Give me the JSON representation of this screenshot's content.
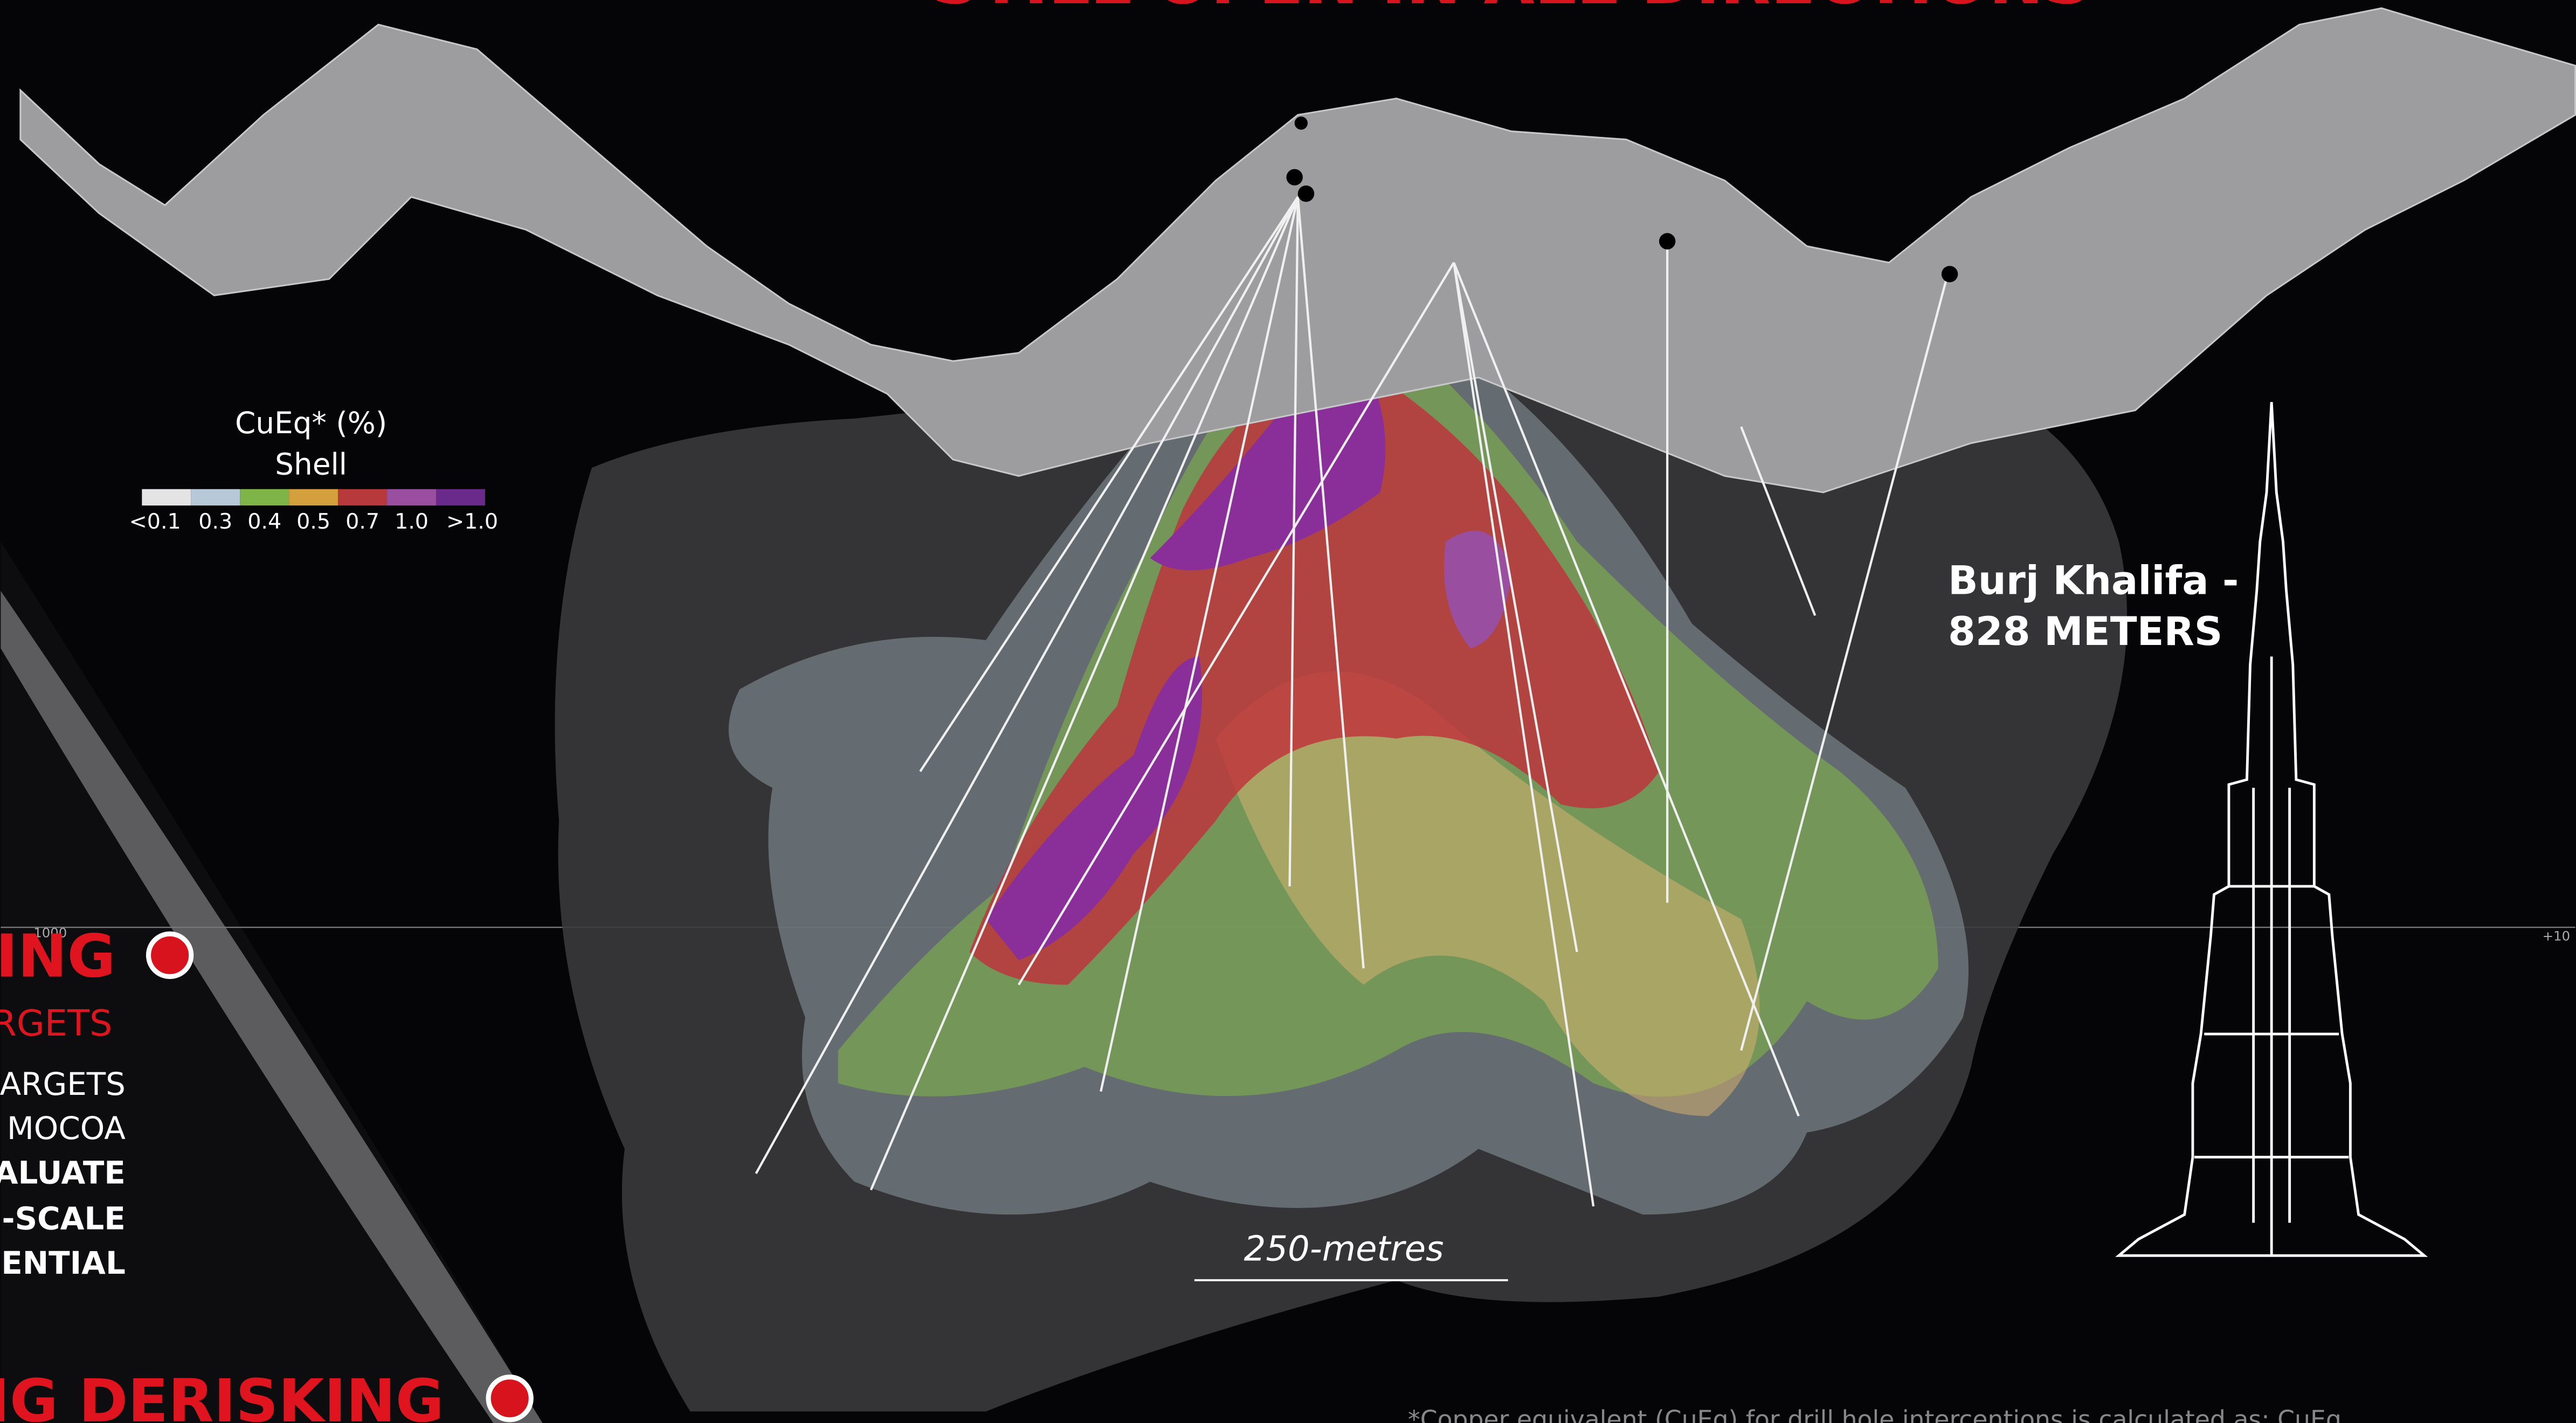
{
  "header": {
    "title": "STILL OPEN IN ALL DIRECTIONS"
  },
  "legend": {
    "title": "CuEq* (%)",
    "subtitle": "Shell",
    "items": [
      {
        "label": "<0.1",
        "color": "#e4e4e4"
      },
      {
        "label": "0.3",
        "color": "#b7c8d6"
      },
      {
        "label": "0.4",
        "color": "#7fb449"
      },
      {
        "label": "0.5",
        "color": "#d4a03e"
      },
      {
        "label": "0.7",
        "color": "#b8393b"
      },
      {
        "label": "1.0",
        "color": "#9a4ea0"
      },
      {
        "label": ">1.0",
        "color": "#6a2a8b"
      }
    ]
  },
  "axis_labels": [
    "1000",
    "+10"
  ],
  "annotation": {
    "line1": "Burj Khalifa -",
    "line2": "828 METERS"
  },
  "scale_bar": "250-metres",
  "sidebar": {
    "heading": "ING",
    "subheading": "RGETS",
    "items": [
      "ARGETS",
      "MOCOA",
      "ALUATE",
      "-SCALE",
      "ENTIAL"
    ],
    "footer_heading": "NG DERISKING"
  },
  "footnote": "*Copper equivalent (CuEq) for drill hole intercentions is calculated as: CuEq"
}
